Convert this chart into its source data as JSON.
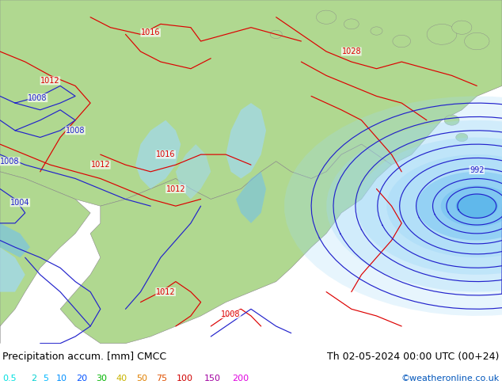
{
  "title_left": "Precipitation accum. [mm] CMCC",
  "title_right": "Th 02-05-2024 00:00 UTC (00+24)",
  "credit": "©weatheronline.co.uk",
  "legend_values": [
    "0.5",
    "2",
    "5",
    "10",
    "20",
    "30",
    "40",
    "50",
    "75",
    "100",
    "150",
    "200"
  ],
  "legend_colors": [
    "#00e0e0",
    "#00d0d0",
    "#00b8ff",
    "#0090ff",
    "#0050ff",
    "#00b400",
    "#c8b400",
    "#e08000",
    "#e05000",
    "#d00000",
    "#a000a0",
    "#e000e0"
  ],
  "land_color": "#b0d890",
  "ocean_color": "#c8c8c8",
  "precip_light": "#a0d8f8",
  "precip_mid": "#70c0f0",
  "precip_center": "#50b0e8",
  "isobar_red": "#dd0000",
  "isobar_blue": "#2222cc",
  "footer_bg": "#ffffff",
  "font_size_title": 9,
  "font_size_legend": 8,
  "font_size_credit": 8,
  "font_size_label": 7
}
